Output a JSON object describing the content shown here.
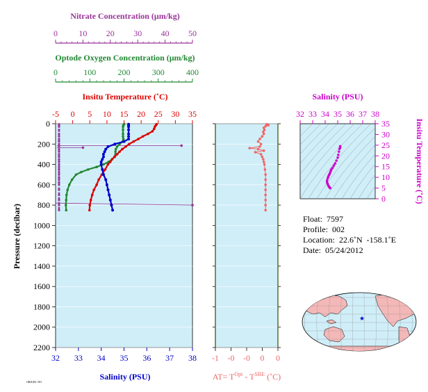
{
  "colors": {
    "nitrate": "#993399",
    "oxygen": "#228833",
    "temperature": "#dd0000",
    "salinity": "#0000cc",
    "anomaly": "#ee6666",
    "ts": "#cc00cc",
    "panel_bg": "#d0eef8",
    "land": "#f4b8b8",
    "ocean": "#d0eef8",
    "star": "#0000cc"
  },
  "axes": {
    "nitrate": {
      "title": "Nitrate Concentration (μm/kg)",
      "ticks": [
        "0",
        "10",
        "20",
        "30",
        "40",
        "50"
      ]
    },
    "oxygen": {
      "title": "Optode Oxygen Concentration (μm/kg)",
      "ticks": [
        "0",
        "100",
        "200",
        "300",
        "400"
      ]
    },
    "temperature": {
      "title": "Insitu Temperature (˚C)",
      "ticks": [
        "-5",
        "0",
        "5",
        "10",
        "15",
        "20",
        "25",
        "30",
        "35"
      ]
    },
    "salinity": {
      "title": "Salinity (PSU)",
      "ticks": [
        "32",
        "33",
        "34",
        "35",
        "36",
        "37",
        "38"
      ]
    },
    "pressure": {
      "title": "Pressure (decibar)",
      "ticks": [
        "0",
        "200",
        "400",
        "600",
        "800",
        "1000",
        "1200",
        "1400",
        "1600",
        "1800",
        "2000",
        "2200"
      ]
    },
    "anomaly": {
      "title_main": "AT= T",
      "title_sup1": "Opt",
      "title_mid": " - T",
      "title_sup2": "SBE",
      "title_end": " (˚C)",
      "ticks": [
        "-1",
        "-0",
        "-0",
        "0",
        "0"
      ]
    },
    "ts_salinity": {
      "title": "Salinity (PSU)",
      "ticks": [
        "32",
        "33",
        "34",
        "35",
        "36",
        "37",
        "38"
      ]
    },
    "ts_temperature": {
      "title": "Insitu Temperature (˚C)",
      "ticks": [
        "0",
        "5",
        "10",
        "15",
        "20",
        "25",
        "30",
        "35"
      ]
    }
  },
  "info": {
    "float": "Float:  7597",
    "profile": "Profile:  002",
    "location": "Location:  22.6˚N  -158.1˚E",
    "date": "Date:  05/24/2012"
  },
  "corner_note": "ORIGIN: NO",
  "chart_data": [
    {
      "type": "line",
      "name": "profile",
      "ylim": [
        2200,
        0
      ],
      "series": [
        {
          "name": "Insitu Temperature",
          "xlim": [
            -5,
            35
          ],
          "points": [
            [
              24.5,
              5
            ],
            [
              24.3,
              15
            ],
            [
              24.0,
              30
            ],
            [
              23.8,
              50
            ],
            [
              23.3,
              75
            ],
            [
              22.0,
              100
            ],
            [
              20.5,
              125
            ],
            [
              19.2,
              150
            ],
            [
              17.8,
              175
            ],
            [
              16.5,
              200
            ],
            [
              15.5,
              225
            ],
            [
              14.5,
              250
            ],
            [
              13.7,
              275
            ],
            [
              13.0,
              300
            ],
            [
              12.2,
              325
            ],
            [
              11.5,
              350
            ],
            [
              11.0,
              375
            ],
            [
              10.3,
              400
            ],
            [
              9.5,
              450
            ],
            [
              8.5,
              500
            ],
            [
              7.6,
              550
            ],
            [
              7.0,
              600
            ],
            [
              6.2,
              650
            ],
            [
              5.7,
              700
            ],
            [
              5.3,
              750
            ],
            [
              5.0,
              800
            ],
            [
              4.9,
              850
            ]
          ]
        },
        {
          "name": "Salinity",
          "xlim": [
            32,
            38
          ],
          "points": [
            [
              35.2,
              5
            ],
            [
              35.2,
              15
            ],
            [
              35.2,
              30
            ],
            [
              35.2,
              60
            ],
            [
              35.2,
              100
            ],
            [
              35.2,
              125
            ],
            [
              35.2,
              150
            ],
            [
              35.0,
              175
            ],
            [
              34.6,
              200
            ],
            [
              34.3,
              225
            ],
            [
              34.2,
              250
            ],
            [
              34.15,
              275
            ],
            [
              34.1,
              300
            ],
            [
              34.1,
              325
            ],
            [
              34.05,
              350
            ],
            [
              34.0,
              375
            ],
            [
              34.0,
              400
            ],
            [
              34.05,
              450
            ],
            [
              34.1,
              500
            ],
            [
              34.2,
              550
            ],
            [
              34.25,
              600
            ],
            [
              34.3,
              650
            ],
            [
              34.35,
              700
            ],
            [
              34.4,
              750
            ],
            [
              34.45,
              800
            ],
            [
              34.5,
              850
            ]
          ]
        },
        {
          "name": "Optode Oxygen",
          "xlim": [
            0,
            400
          ],
          "points": [
            [
              200,
              5
            ],
            [
              198,
              15
            ],
            [
              197,
              30
            ],
            [
              197,
              60
            ],
            [
              197,
              100
            ],
            [
              197,
              125
            ],
            [
              198,
              150
            ],
            [
              196,
              175
            ],
            [
              187,
              200
            ],
            [
              180,
              225
            ],
            [
              176,
              250
            ],
            [
              175,
              275
            ],
            [
              175,
              300
            ],
            [
              173,
              325
            ],
            [
              165,
              350
            ],
            [
              155,
              375
            ],
            [
              140,
              400
            ],
            [
              120,
              425
            ],
            [
              95,
              450
            ],
            [
              75,
              475
            ],
            [
              60,
              500
            ],
            [
              48,
              550
            ],
            [
              40,
              600
            ],
            [
              35,
              650
            ],
            [
              32,
              700
            ],
            [
              31,
              750
            ],
            [
              30,
              800
            ],
            [
              31,
              850
            ]
          ]
        },
        {
          "name": "Nitrate",
          "xlim": [
            0,
            50
          ],
          "points": [
            [
              0.5,
              5
            ],
            [
              0.5,
              15
            ],
            [
              0.5,
              30
            ],
            [
              0.5,
              60
            ],
            [
              0.5,
              100
            ],
            [
              0.5,
              125
            ],
            [
              0.5,
              150
            ],
            [
              0.5,
              175
            ],
            [
              0.5,
              200
            ],
            [
              0.5,
              225
            ],
            [
              0.5,
              250
            ],
            [
              0.5,
              275
            ],
            [
              0.5,
              300
            ],
            [
              0.5,
              325
            ],
            [
              0.5,
              350
            ],
            [
              0.5,
              375
            ],
            [
              0.5,
              400
            ],
            [
              0.5,
              425
            ],
            [
              0.5,
              450
            ],
            [
              0.5,
              475
            ],
            [
              0.5,
              500
            ],
            [
              0.5,
              525
            ],
            [
              0.5,
              550
            ],
            [
              0.5,
              575
            ],
            [
              0.5,
              600
            ],
            [
              0.5,
              650
            ],
            [
              0.5,
              700
            ],
            [
              0.5,
              750
            ],
            [
              0.5,
              800
            ],
            [
              0.5,
              850
            ]
          ]
        }
      ],
      "extra_lines": [
        {
          "kind": "nitrate-spike",
          "points": [
            [
              0.5,
              215
            ],
            [
              46,
              215
            ]
          ]
        },
        {
          "kind": "nitrate-spike",
          "points": [
            [
              0.5,
              235
            ],
            [
              10,
              235
            ]
          ]
        },
        {
          "kind": "salinity-outlier",
          "points": [
            [
              32,
              780
            ],
            [
              38,
              800
            ]
          ]
        }
      ]
    },
    {
      "type": "line",
      "name": "anomaly",
      "xlim": [
        -1,
        0.1
      ],
      "ylim": [
        2200,
        0
      ],
      "points": [
        [
          0,
          5
        ],
        [
          0.03,
          15
        ],
        [
          -0.02,
          25
        ],
        [
          -0.05,
          40
        ],
        [
          -0.04,
          60
        ],
        [
          -0.06,
          80
        ],
        [
          -0.05,
          100
        ],
        [
          -0.08,
          125
        ],
        [
          -0.12,
          150
        ],
        [
          -0.15,
          175
        ],
        [
          -0.1,
          200
        ],
        [
          -0.12,
          225
        ],
        [
          -0.3,
          240
        ],
        [
          -0.15,
          250
        ],
        [
          -0.05,
          265
        ],
        [
          -0.2,
          280
        ],
        [
          -0.1,
          300
        ],
        [
          -0.08,
          325
        ],
        [
          -0.06,
          350
        ],
        [
          -0.05,
          375
        ],
        [
          -0.04,
          400
        ],
        [
          -0.03,
          450
        ],
        [
          -0.02,
          500
        ],
        [
          -0.02,
          550
        ],
        [
          -0.02,
          600
        ],
        [
          -0.02,
          650
        ],
        [
          -0.02,
          700
        ],
        [
          -0.02,
          750
        ],
        [
          -0.02,
          800
        ],
        [
          -0.02,
          850
        ]
      ]
    },
    {
      "type": "scatter",
      "name": "ts-diagram",
      "xlim": [
        32,
        38
      ],
      "ylim": [
        0,
        35
      ],
      "points": [
        [
          35.2,
          24.5
        ],
        [
          35.2,
          24.0
        ],
        [
          35.15,
          23.3
        ],
        [
          35.1,
          22.0
        ],
        [
          35.05,
          20.5
        ],
        [
          35.0,
          19.2
        ],
        [
          34.9,
          17.8
        ],
        [
          34.8,
          16.5
        ],
        [
          34.7,
          15.5
        ],
        [
          34.6,
          14.5
        ],
        [
          34.5,
          13.7
        ],
        [
          34.45,
          13.0
        ],
        [
          34.4,
          12.2
        ],
        [
          34.35,
          11.5
        ],
        [
          34.3,
          11.0
        ],
        [
          34.25,
          10.3
        ],
        [
          34.2,
          9.5
        ],
        [
          34.15,
          8.5
        ],
        [
          34.15,
          7.6
        ],
        [
          34.2,
          7.0
        ],
        [
          34.25,
          6.2
        ],
        [
          34.3,
          5.7
        ],
        [
          34.35,
          5.3
        ],
        [
          34.4,
          5.0
        ]
      ]
    }
  ]
}
